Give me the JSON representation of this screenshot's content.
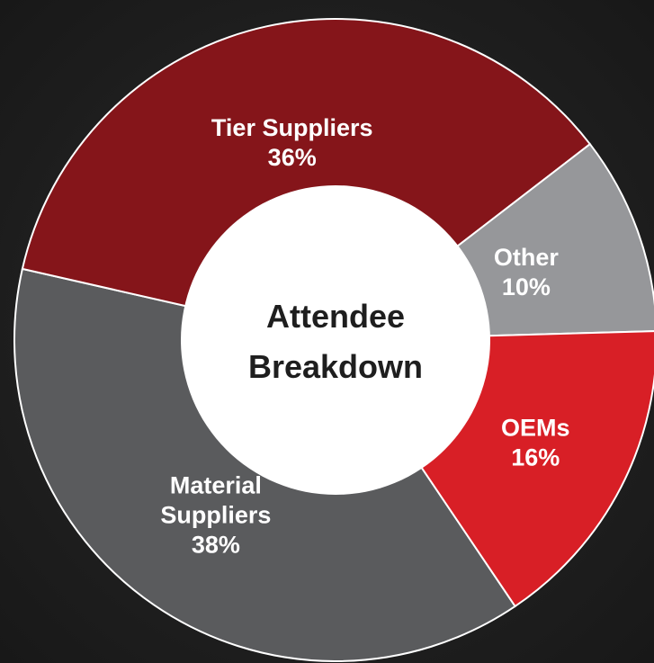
{
  "chart_data": {
    "type": "pie",
    "variant": "donut",
    "title": "",
    "center_label": [
      "Attendee",
      "Breakdown"
    ],
    "slices": [
      {
        "name": "Material Suppliers",
        "label_lines": [
          "Material",
          "Suppliers"
        ],
        "value": 38,
        "value_label": "38%",
        "color": "#5a5b5d"
      },
      {
        "name": "Tier Suppliers",
        "label_lines": [
          "Tier Suppliers"
        ],
        "value": 36,
        "value_label": "36%",
        "color": "#85151a"
      },
      {
        "name": "Other",
        "label_lines": [
          "Other"
        ],
        "value": 10,
        "value_label": "10%",
        "color": "#96979a"
      },
      {
        "name": "OEMs",
        "label_lines": [
          "OEMs"
        ],
        "value": 16,
        "value_label": "16%",
        "color": "#d81f26"
      }
    ],
    "legend": "none"
  }
}
